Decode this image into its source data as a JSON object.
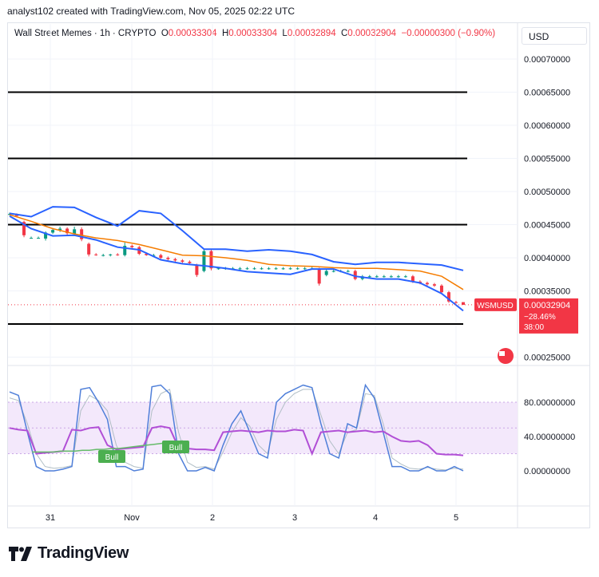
{
  "header": {
    "creator_line": "analyst102 created with TradingView.com, Nov 05, 2025 02:22 UTC"
  },
  "legend": {
    "symbol": "Wall Street Memes · 1h · CRYPTO",
    "open_label": "O",
    "open": "0.00033304",
    "high_label": "H",
    "high": "0.00033304",
    "low_label": "L",
    "low": "0.00032894",
    "close_label": "C",
    "close": "0.00032904",
    "change": "−0.00000300 (−0.90%)"
  },
  "currency_selector": {
    "label": "USD"
  },
  "price_badge": {
    "ticker": "WSMUSD",
    "price": "0.00032904",
    "change_pct": "−28.46%",
    "countdown": "38:00"
  },
  "brand": {
    "name": "TradingView"
  },
  "colors": {
    "up": "#089981",
    "down": "#f23645",
    "bands": "#2962ff",
    "ma": "#f57c00",
    "stoch_k": "#4f7fd9",
    "rsi": "#b14fd6",
    "grid": "#f0f3fa"
  },
  "chart_data": [
    {
      "type": "candlestick",
      "name": "Wall Street Memes · 1h · CRYPTO",
      "x_ticks": [
        "31",
        "Nov",
        "2",
        "3",
        "4",
        "5"
      ],
      "y_ticks": [
        "0.00070000",
        "0.00065000",
        "0.00060000",
        "0.00055000",
        "0.00050000",
        "0.00045000",
        "0.00040000",
        "0.00035000",
        "0.00025000"
      ],
      "ylim": [
        0.00023,
        0.00074
      ],
      "horizontal_levels": [
        0.00065,
        0.00055,
        0.00045,
        0.0003
      ],
      "last_price": 0.00032904,
      "bollinger": {
        "upper": [
          0.000467,
          0.000462,
          0.000477,
          0.000476,
          0.000461,
          0.000448,
          0.000471,
          0.000467,
          0.000441,
          0.000413,
          0.000413,
          0.00041,
          0.000412,
          0.00041,
          0.000405,
          0.000394,
          0.00039,
          0.000393,
          0.000393,
          0.000391,
          0.000389,
          0.000381
        ],
        "basis": [
          0.000465,
          0.000455,
          0.000444,
          0.000436,
          0.00043,
          0.000426,
          0.00042,
          0.000412,
          0.000404,
          0.000403,
          0.0004,
          0.000396,
          0.00039,
          0.000388,
          0.000387,
          0.000385,
          0.000384,
          0.000384,
          0.000382,
          0.00038,
          0.000372,
          0.000352
        ],
        "lower": [
          0.000463,
          0.000444,
          0.000433,
          0.000434,
          0.000427,
          0.000416,
          0.000412,
          0.000397,
          0.000391,
          0.000388,
          0.000384,
          0.000379,
          0.000377,
          0.000375,
          0.000383,
          0.000383,
          0.000372,
          0.000368,
          0.000368,
          0.000362,
          0.000346,
          0.00032
        ]
      },
      "candles": [
        {
          "o": 0.000466,
          "h": 0.000468,
          "l": 0.000464,
          "c": 0.000466
        },
        {
          "o": 0.000465,
          "h": 0.000467,
          "l": 0.000463,
          "c": 0.000463
        },
        {
          "o": 0.000454,
          "h": 0.000456,
          "l": 0.000431,
          "c": 0.000434
        },
        {
          "o": 0.00043,
          "h": 0.000432,
          "l": 0.000429,
          "c": 0.00043
        },
        {
          "o": 0.00043,
          "h": 0.000432,
          "l": 0.000429,
          "c": 0.00043
        },
        {
          "o": 0.000429,
          "h": 0.00044,
          "l": 0.000426,
          "c": 0.000438
        },
        {
          "o": 0.000438,
          "h": 0.000445,
          "l": 0.000436,
          "c": 0.000442
        },
        {
          "o": 0.000442,
          "h": 0.000447,
          "l": 0.000439,
          "c": 0.000444
        },
        {
          "o": 0.000444,
          "h": 0.000446,
          "l": 0.000434,
          "c": 0.000437
        },
        {
          "o": 0.000436,
          "h": 0.000447,
          "l": 0.000433,
          "c": 0.000443
        },
        {
          "o": 0.000443,
          "h": 0.000446,
          "l": 0.000425,
          "c": 0.000428
        },
        {
          "o": 0.000421,
          "h": 0.000423,
          "l": 0.000402,
          "c": 0.000405
        },
        {
          "o": 0.000405,
          "h": 0.000407,
          "l": 0.000403,
          "c": 0.000404
        },
        {
          "o": 0.000404,
          "h": 0.000406,
          "l": 0.000402,
          "c": 0.000404
        },
        {
          "o": 0.000404,
          "h": 0.000406,
          "l": 0.000402,
          "c": 0.000405
        },
        {
          "o": 0.000405,
          "h": 0.000407,
          "l": 0.000403,
          "c": 0.000404
        },
        {
          "o": 0.000404,
          "h": 0.000423,
          "l": 0.000402,
          "c": 0.000418
        },
        {
          "o": 0.000418,
          "h": 0.00042,
          "l": 0.000414,
          "c": 0.000416
        },
        {
          "o": 0.000416,
          "h": 0.000418,
          "l": 0.000404,
          "c": 0.000406
        },
        {
          "o": 0.000406,
          "h": 0.000408,
          "l": 0.000403,
          "c": 0.000404
        },
        {
          "o": 0.000404,
          "h": 0.000406,
          "l": 0.000402,
          "c": 0.000404
        },
        {
          "o": 0.000404,
          "h": 0.000406,
          "l": 0.000398,
          "c": 0.0004
        },
        {
          "o": 0.0004,
          "h": 0.000402,
          "l": 0.000396,
          "c": 0.000398
        },
        {
          "o": 0.000398,
          "h": 0.0004,
          "l": 0.000394,
          "c": 0.000396
        },
        {
          "o": 0.000396,
          "h": 0.000398,
          "l": 0.000392,
          "c": 0.000394
        },
        {
          "o": 0.000394,
          "h": 0.000396,
          "l": 0.00039,
          "c": 0.000392
        },
        {
          "o": 0.000389,
          "h": 0.000391,
          "l": 0.000371,
          "c": 0.000374
        },
        {
          "o": 0.00038,
          "h": 0.000412,
          "l": 0.000378,
          "c": 0.00041
        },
        {
          "o": 0.00041,
          "h": 0.000412,
          "l": 0.000381,
          "c": 0.000384
        },
        {
          "o": 0.000384,
          "h": 0.000386,
          "l": 0.000382,
          "c": 0.000384
        },
        {
          "o": 0.000384,
          "h": 0.000386,
          "l": 0.000382,
          "c": 0.000384
        },
        {
          "o": 0.000384,
          "h": 0.000386,
          "l": 0.000382,
          "c": 0.000384
        },
        {
          "o": 0.000384,
          "h": 0.000386,
          "l": 0.000382,
          "c": 0.000384
        },
        {
          "o": 0.000384,
          "h": 0.000386,
          "l": 0.000382,
          "c": 0.000384
        },
        {
          "o": 0.000384,
          "h": 0.000386,
          "l": 0.000382,
          "c": 0.000384
        },
        {
          "o": 0.000384,
          "h": 0.000386,
          "l": 0.000382,
          "c": 0.000384
        },
        {
          "o": 0.000384,
          "h": 0.000386,
          "l": 0.000382,
          "c": 0.000384
        },
        {
          "o": 0.000384,
          "h": 0.000386,
          "l": 0.000382,
          "c": 0.000384
        },
        {
          "o": 0.000384,
          "h": 0.000386,
          "l": 0.000382,
          "c": 0.000384
        },
        {
          "o": 0.000384,
          "h": 0.000386,
          "l": 0.000382,
          "c": 0.000384
        },
        {
          "o": 0.000384,
          "h": 0.000386,
          "l": 0.000382,
          "c": 0.000384
        },
        {
          "o": 0.000384,
          "h": 0.000386,
          "l": 0.000382,
          "c": 0.000384
        },
        {
          "o": 0.000384,
          "h": 0.000386,
          "l": 0.000382,
          "c": 0.000384
        },
        {
          "o": 0.000383,
          "h": 0.000385,
          "l": 0.000358,
          "c": 0.000361
        },
        {
          "o": 0.000374,
          "h": 0.000383,
          "l": 0.000372,
          "c": 0.00038
        },
        {
          "o": 0.00038,
          "h": 0.000382,
          "l": 0.000378,
          "c": 0.00038
        },
        {
          "o": 0.00038,
          "h": 0.000382,
          "l": 0.000378,
          "c": 0.00038
        },
        {
          "o": 0.00038,
          "h": 0.000382,
          "l": 0.000378,
          "c": 0.00038
        },
        {
          "o": 0.00038,
          "h": 0.000382,
          "l": 0.000366,
          "c": 0.000368
        },
        {
          "o": 0.000368,
          "h": 0.000374,
          "l": 0.000366,
          "c": 0.000372
        },
        {
          "o": 0.000372,
          "h": 0.000374,
          "l": 0.00037,
          "c": 0.000372
        },
        {
          "o": 0.000372,
          "h": 0.000374,
          "l": 0.00037,
          "c": 0.000372
        },
        {
          "o": 0.000372,
          "h": 0.000374,
          "l": 0.00037,
          "c": 0.000372
        },
        {
          "o": 0.000372,
          "h": 0.000374,
          "l": 0.00037,
          "c": 0.000372
        },
        {
          "o": 0.000372,
          "h": 0.000374,
          "l": 0.00037,
          "c": 0.000372
        },
        {
          "o": 0.000372,
          "h": 0.000374,
          "l": 0.00037,
          "c": 0.000372
        },
        {
          "o": 0.000372,
          "h": 0.000374,
          "l": 0.000362,
          "c": 0.000364
        },
        {
          "o": 0.000364,
          "h": 0.000366,
          "l": 0.00036,
          "c": 0.000362
        },
        {
          "o": 0.000362,
          "h": 0.000364,
          "l": 0.000358,
          "c": 0.00036
        },
        {
          "o": 0.00036,
          "h": 0.000362,
          "l": 0.000356,
          "c": 0.000358
        },
        {
          "o": 0.000358,
          "h": 0.00036,
          "l": 0.000346,
          "c": 0.000348
        },
        {
          "o": 0.000348,
          "h": 0.00035,
          "l": 0.000332,
          "c": 0.000334
        },
        {
          "o": 0.000333,
          "h": 0.000335,
          "l": 0.000331,
          "c": 0.000332
        },
        {
          "o": 0.000333,
          "h": 0.000333,
          "l": 0.000329,
          "c": 0.000329
        }
      ]
    },
    {
      "type": "line",
      "name": "oscillator",
      "y_ticks": [
        "80.00000000",
        "40.00000000",
        "0.00000000"
      ],
      "ylim": [
        -30,
        120
      ],
      "bands": [
        20,
        50,
        80
      ],
      "series": [
        {
          "key": "k",
          "values": [
            92,
            88,
            45,
            5,
            0,
            0,
            2,
            5,
            95,
            97,
            80,
            60,
            5,
            5,
            0,
            2,
            98,
            100,
            90,
            20,
            0,
            0,
            4,
            0,
            30,
            55,
            70,
            45,
            20,
            15,
            80,
            90,
            95,
            100,
            97,
            55,
            20,
            15,
            55,
            50,
            100,
            85,
            45,
            5,
            5,
            0,
            0,
            5,
            0,
            0,
            5,
            0
          ]
        },
        {
          "key": "d",
          "values": [
            85,
            82,
            55,
            20,
            5,
            3,
            4,
            6,
            70,
            88,
            82,
            70,
            30,
            10,
            5,
            3,
            70,
            90,
            95,
            45,
            10,
            4,
            5,
            2,
            22,
            45,
            62,
            52,
            30,
            20,
            60,
            80,
            90,
            95,
            95,
            65,
            35,
            20,
            45,
            48,
            90,
            88,
            55,
            15,
            8,
            3,
            2,
            4,
            2,
            1,
            3,
            2
          ]
        },
        {
          "key": "rsi",
          "values": [
            50,
            48,
            47,
            20,
            21,
            22,
            23,
            48,
            47,
            50,
            51,
            30,
            25,
            26,
            27,
            28,
            50,
            52,
            50,
            27,
            26,
            25,
            25,
            24,
            45,
            46,
            47,
            46,
            45,
            47,
            46,
            46,
            48,
            47,
            20,
            45,
            46,
            47,
            45,
            46,
            47,
            45,
            46,
            40,
            35,
            34,
            35,
            30,
            20,
            19,
            19,
            18
          ]
        },
        {
          "key": "rsi_ma",
          "values": [
            22,
            22,
            22,
            22,
            23,
            23,
            23,
            24,
            24,
            25,
            25,
            26,
            26,
            27,
            28,
            29,
            30,
            31,
            32,
            33,
            34,
            35
          ]
        }
      ],
      "signals": [
        "Bull",
        "Bull"
      ]
    }
  ]
}
